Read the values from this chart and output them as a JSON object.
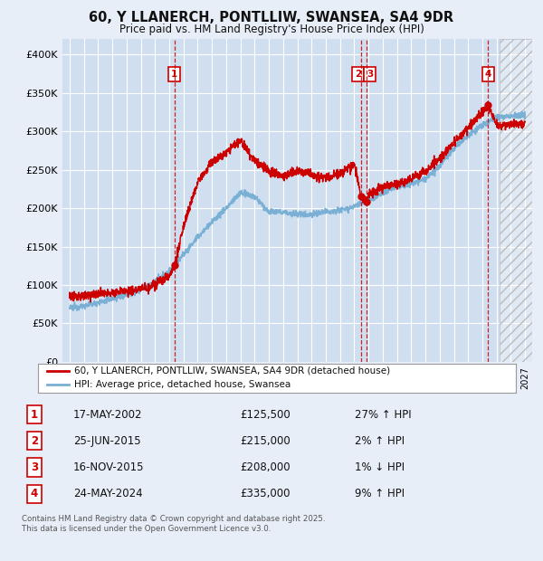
{
  "title": "60, Y LLANERCH, PONTLLIW, SWANSEA, SA4 9DR",
  "subtitle": "Price paid vs. HM Land Registry's House Price Index (HPI)",
  "ylim": [
    0,
    420000
  ],
  "xlim_start": 1994.5,
  "xlim_end": 2027.5,
  "yticks": [
    0,
    50000,
    100000,
    150000,
    200000,
    250000,
    300000,
    350000,
    400000
  ],
  "ytick_labels": [
    "£0",
    "£50K",
    "£100K",
    "£150K",
    "£200K",
    "£250K",
    "£300K",
    "£350K",
    "£400K"
  ],
  "background_color": "#e8eef8",
  "plot_bg_color": "#d0dff0",
  "grid_color": "#ffffff",
  "red_line_color": "#cc0000",
  "blue_line_color": "#7ab0d4",
  "hatch_start": 2025.2,
  "transactions": [
    {
      "num": 1,
      "date": "17-MAY-2002",
      "year": 2002.37,
      "price": 125500,
      "pct": "27%",
      "dir": "↑"
    },
    {
      "num": 2,
      "date": "25-JUN-2015",
      "year": 2015.48,
      "price": 215000,
      "pct": "2%",
      "dir": "↑"
    },
    {
      "num": 3,
      "date": "16-NOV-2015",
      "year": 2015.88,
      "price": 208000,
      "pct": "1%",
      "dir": "↓"
    },
    {
      "num": 4,
      "date": "24-MAY-2024",
      "year": 2024.4,
      "price": 335000,
      "pct": "9%",
      "dir": "↑"
    }
  ],
  "legend_label_red": "60, Y LLANERCH, PONTLLIW, SWANSEA, SA4 9DR (detached house)",
  "legend_label_blue": "HPI: Average price, detached house, Swansea",
  "footer": "Contains HM Land Registry data © Crown copyright and database right 2025.\nThis data is licensed under the Open Government Licence v3.0.",
  "rows": [
    {
      "num": 1,
      "date": "17-MAY-2002",
      "price": "£125,500",
      "pct": "27% ↑ HPI"
    },
    {
      "num": 2,
      "date": "25-JUN-2015",
      "price": "£215,000",
      "pct": "2% ↑ HPI"
    },
    {
      "num": 3,
      "date": "16-NOV-2015",
      "price": "£208,000",
      "pct": "1% ↓ HPI"
    },
    {
      "num": 4,
      "date": "24-MAY-2024",
      "price": "£335,000",
      "pct": "9% ↑ HPI"
    }
  ],
  "hpi_anchors_x": [
    1995,
    1996,
    1997,
    1998,
    1999,
    2000,
    2001,
    2002,
    2003,
    2004,
    2005,
    2006,
    2007,
    2008,
    2009,
    2010,
    2011,
    2012,
    2013,
    2014,
    2015,
    2016,
    2017,
    2018,
    2019,
    2020,
    2021,
    2022,
    2023,
    2024,
    2025,
    2026,
    2027
  ],
  "hpi_anchors_y": [
    70000,
    73000,
    77000,
    82000,
    88000,
    94000,
    103000,
    118000,
    140000,
    162000,
    182000,
    200000,
    220000,
    215000,
    195000,
    195000,
    192000,
    192000,
    195000,
    198000,
    202000,
    210000,
    220000,
    228000,
    232000,
    238000,
    255000,
    278000,
    295000,
    308000,
    318000,
    320000,
    322000
  ],
  "red_anchors_x": [
    1995,
    1996,
    1997,
    1998,
    1999,
    2000,
    2001,
    2002,
    2002.37,
    2003,
    2004,
    2005,
    2006,
    2007,
    2008,
    2009,
    2010,
    2011,
    2012,
    2013,
    2014,
    2015.0,
    2015.48,
    2015.88,
    2016,
    2017,
    2018,
    2019,
    2020,
    2021,
    2022,
    2023,
    2024,
    2024.4,
    2025,
    2026,
    2027
  ],
  "red_anchors_y": [
    85000,
    87000,
    89000,
    90000,
    92000,
    95000,
    100000,
    112000,
    125500,
    175000,
    235000,
    260000,
    272000,
    288000,
    262000,
    248000,
    242000,
    248000,
    244000,
    240000,
    244000,
    258000,
    215000,
    208000,
    218000,
    228000,
    232000,
    238000,
    248000,
    265000,
    285000,
    305000,
    325000,
    335000,
    308000,
    308000,
    310000
  ]
}
